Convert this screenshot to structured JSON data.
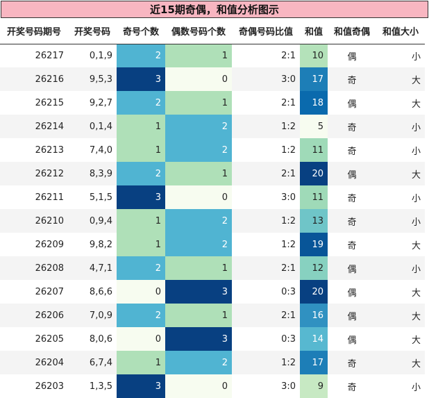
{
  "title": "近15期奇偶，和值分析图示",
  "columns": [
    "开奖号码期号",
    "开奖号码",
    "奇号个数",
    "偶数号码个数",
    "奇偶号码比值",
    "和值",
    "和值奇偶",
    "和值大小"
  ],
  "chart_data": {
    "type": "table",
    "title": "近15期奇偶，和值分析图示",
    "columns": [
      "开奖号码期号",
      "开奖号码",
      "奇号个数",
      "偶数号码个数",
      "奇偶号码比值",
      "和值",
      "和值奇偶",
      "和值大小"
    ],
    "rows": [
      [
        "26217",
        "0,1,9",
        2,
        1,
        "2:1",
        10,
        "偶",
        "小"
      ],
      [
        "26216",
        "9,5,3",
        3,
        0,
        "3:0",
        17,
        "奇",
        "大"
      ],
      [
        "26215",
        "9,2,7",
        2,
        1,
        "2:1",
        18,
        "偶",
        "大"
      ],
      [
        "26214",
        "0,1,4",
        1,
        2,
        "1:2",
        5,
        "奇",
        "小"
      ],
      [
        "26213",
        "7,4,0",
        1,
        2,
        "1:2",
        11,
        "奇",
        "小"
      ],
      [
        "26212",
        "8,3,9",
        2,
        1,
        "2:1",
        20,
        "偶",
        "大"
      ],
      [
        "26211",
        "5,1,5",
        3,
        0,
        "3:0",
        11,
        "奇",
        "小"
      ],
      [
        "26210",
        "0,9,4",
        1,
        2,
        "1:2",
        13,
        "奇",
        "小"
      ],
      [
        "26209",
        "9,8,2",
        1,
        2,
        "1:2",
        19,
        "奇",
        "大"
      ],
      [
        "26208",
        "4,7,1",
        2,
        1,
        "2:1",
        12,
        "偶",
        "小"
      ],
      [
        "26207",
        "8,6,6",
        0,
        3,
        "0:3",
        20,
        "偶",
        "大"
      ],
      [
        "26206",
        "7,0,9",
        2,
        1,
        "2:1",
        16,
        "偶",
        "大"
      ],
      [
        "26205",
        "8,0,6",
        0,
        3,
        "0:3",
        14,
        "偶",
        "大"
      ],
      [
        "26204",
        "6,7,4",
        1,
        2,
        "1:2",
        17,
        "奇",
        "大"
      ],
      [
        "26203",
        "1,3,5",
        3,
        0,
        "3:0",
        9,
        "奇",
        "小"
      ]
    ],
    "heatmap_columns": [
      "奇号个数",
      "偶数号码个数",
      "和值"
    ],
    "colormap": "GnBu",
    "count_range": [
      0,
      3
    ],
    "sum_range": [
      5,
      20
    ]
  }
}
